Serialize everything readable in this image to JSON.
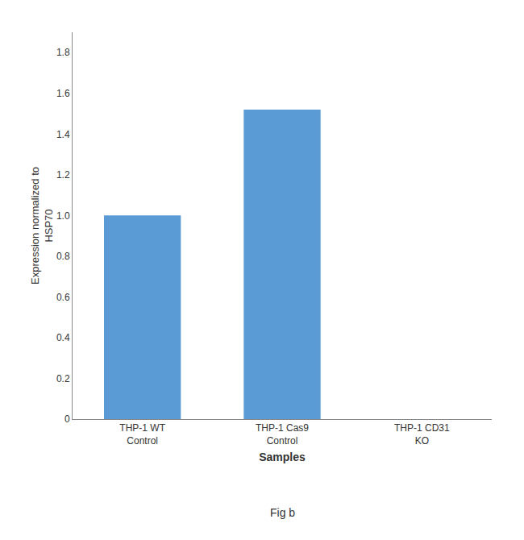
{
  "chart_data": {
    "type": "bar",
    "categories": [
      "THP-1 WT\nControl",
      "THP-1 Cas9\nControl",
      "THP-1 CD31\nKO"
    ],
    "values": [
      1.0,
      1.52,
      0.0
    ],
    "color": "#5b9bd5",
    "xlabel": "Samples",
    "ylabel": "Expression normalized to\nHSP70",
    "ylim": [
      0,
      1.9
    ],
    "yticks": [
      0,
      0.2,
      0.4,
      0.6,
      0.8,
      {
        "value": 1.0,
        "label": "1.0"
      },
      1.2,
      1.4,
      1.6,
      1.8
    ],
    "grid": false,
    "annotations": [
      "Fig b"
    ]
  }
}
